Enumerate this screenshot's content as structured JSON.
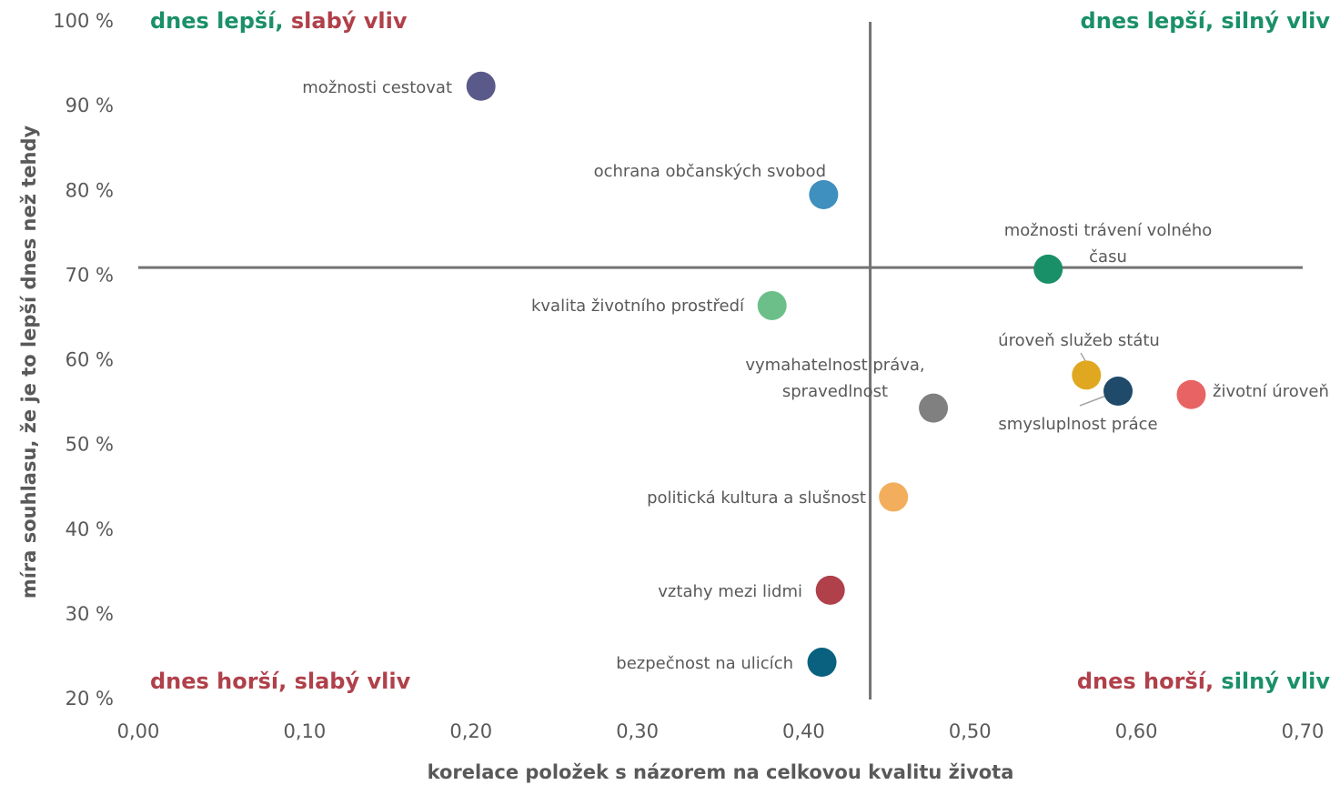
{
  "chart_data": {
    "type": "scatter",
    "x_label": "korelace položek s názorem na celkovou kvalitu života",
    "y_label": "míra souhlasu, že je to lepší dnes než tehdy",
    "xlim": [
      0,
      0.7
    ],
    "ylim": [
      20,
      100
    ],
    "xticks": [
      {
        "value": 0,
        "label": "0,00"
      },
      {
        "value": 0.1,
        "label": "0,10"
      },
      {
        "value": 0.2,
        "label": "0,20"
      },
      {
        "value": 0.3,
        "label": "0,30"
      },
      {
        "value": 0.4,
        "label": "0,40"
      },
      {
        "value": 0.5,
        "label": "0,50"
      },
      {
        "value": 0.6,
        "label": "0,60"
      },
      {
        "value": 0.7,
        "label": "0,70"
      }
    ],
    "yticks": [
      {
        "value": 20,
        "label": "20 %"
      },
      {
        "value": 30,
        "label": "30 %"
      },
      {
        "value": 40,
        "label": "40 %"
      },
      {
        "value": 50,
        "label": "50 %"
      },
      {
        "value": 60,
        "label": "60 %"
      },
      {
        "value": 70,
        "label": "70 %"
      },
      {
        "value": 80,
        "label": "80 %"
      },
      {
        "value": 90,
        "label": "90 %"
      },
      {
        "value": 100,
        "label": "100 %"
      }
    ],
    "reference_x": 0.44,
    "reference_y": 71,
    "x": [
      0.206,
      0.412,
      0.547,
      0.381,
      0.57,
      0.589,
      0.633,
      0.478,
      0.454,
      0.416,
      0.411
    ],
    "values": [
      92.4,
      79.6,
      70.8,
      66.5,
      58.3,
      56.4,
      56.0,
      54.4,
      43.9,
      32.9,
      24.4
    ],
    "point_labels": [
      [
        "možnosti cestovat"
      ],
      [
        "ochrana občanských svobod"
      ],
      [
        "možnosti trávení volného",
        "času"
      ],
      [
        "kvalita životního prostředí"
      ],
      [
        "úroveň služeb státu"
      ],
      [
        "smysluplnost práce"
      ],
      [
        "životní úroveň"
      ],
      [
        "vymahatelnost práva,",
        "spravedlnost"
      ],
      [
        "politická kultura a slušnost"
      ],
      [
        "vztahy mezi lidmi"
      ],
      [
        "bezpečnost na ulicích"
      ]
    ],
    "colors": [
      "#5a5a8a",
      "#3f8fbf",
      "#1a9068",
      "#6dbf8a",
      "#e0a820",
      "#1f4a6a",
      "#e86464",
      "#808080",
      "#f2ae5c",
      "#b0404a",
      "#0a607f"
    ],
    "quadrant_labels": [
      {
        "parts": [
          "dnes lepší",
          ", ",
          "slabý vliv"
        ],
        "colors": [
          "#1a9068",
          "#1a9068",
          "#b0404a"
        ]
      },
      {
        "parts": [
          "dnes lepší",
          ", ",
          "silný vliv"
        ],
        "colors": [
          "#1a9068",
          "#1a9068",
          "#1a9068"
        ]
      },
      {
        "parts": [
          "dnes horší",
          ", ",
          "slabý vliv"
        ],
        "colors": [
          "#b0404a",
          "#b0404a",
          "#b0404a"
        ]
      },
      {
        "parts": [
          "dnes horší",
          ", ",
          "silný vliv"
        ],
        "colors": [
          "#b0404a",
          "#b0404a",
          "#1a9068"
        ]
      }
    ]
  }
}
